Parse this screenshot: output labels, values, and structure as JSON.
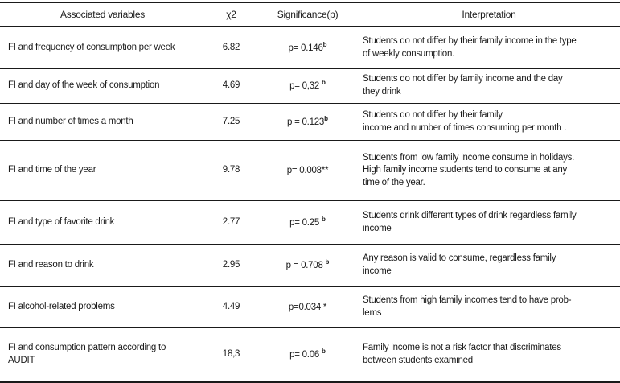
{
  "colors": {
    "background": "#ffffff",
    "text": "#1b1b1b",
    "rule_line": "#1a1a1a"
  },
  "table": {
    "headers": {
      "variables": "Associated variables",
      "chi2": "χ2",
      "significance": "Significance(p)",
      "interpretation": "Interpretation"
    },
    "rows": [
      {
        "variable": "FI and frequency of consumption per week",
        "chi2": "6.82",
        "sig": {
          "text": "p= 0.146",
          "sup": "b"
        },
        "interpretation": "Students do not differ by their family income in the type\nof weekly consumption."
      },
      {
        "variable": "FI and day of the week of consumption",
        "chi2": "4.69",
        "sig": {
          "text": "p= 0,32 ",
          "sup": "b"
        },
        "interpretation": "Students do not differ by family income and the day\nthey drink"
      },
      {
        "variable": "FI and number of times a month",
        "chi2": "7.25",
        "sig": {
          "text": "p = 0.123",
          "sup": "b"
        },
        "interpretation": "Students do not differ by their family\nincome and number of times consuming per month ."
      },
      {
        "variable": "FI and time of the year",
        "chi2": "9.78",
        "sig": {
          "text": "p= 0.008**",
          "sup": ""
        },
        "interpretation": "Students from low family income consume in holidays.\nHigh family income students tend to consume at any\ntime of the year."
      },
      {
        "variable": "FI and type of favorite drink",
        "chi2": "2.77",
        "sig": {
          "text": "p= 0.25 ",
          "sup": "b"
        },
        "interpretation": "Students drink different types of drink regardless family\nincome"
      },
      {
        "variable": "FI and reason to drink",
        "chi2": "2.95",
        "sig": {
          "text": "p = 0.708 ",
          "sup": "b"
        },
        "interpretation": "Any reason is valid to consume, regardless family\nincome"
      },
      {
        "variable": "FI alcohol-related problems",
        "chi2": "4.49",
        "sig": {
          "text": "p=0.034 *",
          "sup": ""
        },
        "interpretation": "Students from high family incomes tend to have prob-\nlems"
      },
      {
        "variable": "FI and consumption pattern according to\nAUDIT",
        "chi2": "18,3",
        "sig": {
          "text": "p= 0.06 ",
          "sup": "b"
        },
        "interpretation": "Family income is not a risk factor that discriminates\nbetween students examined"
      }
    ]
  }
}
